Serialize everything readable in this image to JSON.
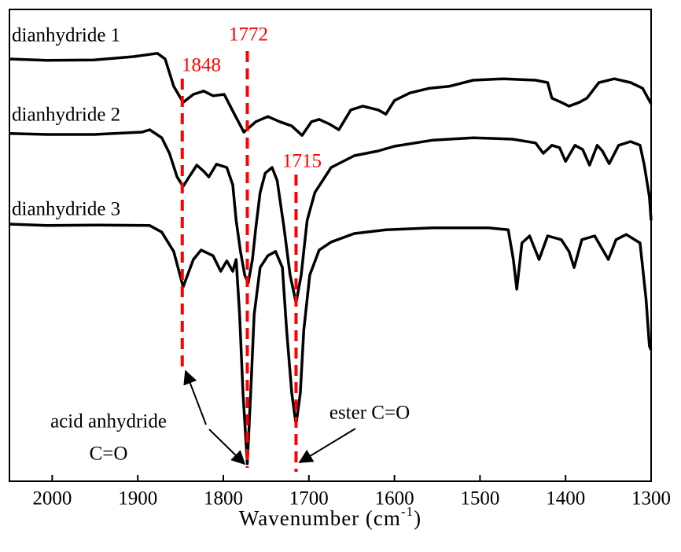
{
  "chart_data": {
    "type": "line",
    "xlabel": [
      "Wavenumber (cm",
      "-1",
      ")"
    ],
    "xlim": [
      2050,
      1300
    ],
    "xticks": [
      2000,
      1900,
      1800,
      1700,
      1600,
      1500,
      1400,
      1300
    ],
    "ylim": [
      0,
      100
    ],
    "series": [
      {
        "name": "dianhydride 1",
        "color": "#000000",
        "x": [
          2050,
          2006,
          1951,
          1905,
          1877,
          1868,
          1858,
          1847,
          1835,
          1823,
          1812,
          1799,
          1787,
          1776,
          1762,
          1748,
          1734,
          1720,
          1708,
          1697,
          1688,
          1676,
          1665,
          1651,
          1637,
          1619,
          1610,
          1600,
          1582,
          1559,
          1536,
          1508,
          1472,
          1435,
          1421,
          1416,
          1405,
          1396,
          1384,
          1375,
          1361,
          1343,
          1324,
          1310,
          1300
        ],
        "values": [
          89.5,
          89.2,
          89.3,
          90,
          90.7,
          89.5,
          83.7,
          80.3,
          82,
          82.7,
          81.7,
          82,
          77.8,
          74,
          76.2,
          77.3,
          76.2,
          75.3,
          73.3,
          76.2,
          76.7,
          75.7,
          74.5,
          78.7,
          79.5,
          78.7,
          77.8,
          80.7,
          82.3,
          83.3,
          83.7,
          85,
          85.3,
          85,
          84.5,
          81.2,
          80.3,
          79.5,
          80.3,
          81.2,
          84.5,
          85.3,
          84.5,
          83.3,
          80
        ]
      },
      {
        "name": "dianhydride 2",
        "color": "#000000",
        "x": [
          2050,
          2006,
          1951,
          1895,
          1886,
          1872,
          1863,
          1854,
          1847,
          1840,
          1831,
          1823,
          1817,
          1808,
          1796,
          1789,
          1785,
          1780,
          1775,
          1771,
          1766,
          1762,
          1757,
          1751,
          1743,
          1737,
          1729,
          1722,
          1715,
          1709,
          1702,
          1693,
          1674,
          1647,
          1619,
          1600,
          1555,
          1508,
          1462,
          1435,
          1426,
          1416,
          1407,
          1400,
          1389,
          1380,
          1372,
          1363,
          1357,
          1349,
          1338,
          1324,
          1313,
          1308,
          1302,
          1300
        ],
        "values": [
          73.7,
          73.5,
          73.5,
          74,
          74.5,
          72.8,
          69.5,
          64.5,
          62.5,
          64.5,
          67,
          65.7,
          64.5,
          67.2,
          66.5,
          62.8,
          55.3,
          48.7,
          43.7,
          42,
          47,
          53.7,
          61.2,
          65.3,
          66.5,
          63.7,
          53.7,
          43.7,
          37.8,
          43.7,
          55.3,
          61.2,
          66.5,
          69,
          70,
          71,
          72.3,
          72.8,
          72.5,
          71.7,
          69.5,
          71.2,
          70.7,
          67.8,
          71.2,
          70.3,
          67,
          71.2,
          70,
          67.3,
          71.2,
          72,
          71.2,
          67,
          60.3,
          55.3
        ]
      },
      {
        "name": "dianhydride 3",
        "color": "#000000",
        "x": [
          2050,
          2006,
          1951,
          1886,
          1872,
          1858,
          1847,
          1835,
          1826,
          1812,
          1803,
          1796,
          1789,
          1785,
          1781,
          1777,
          1772,
          1768,
          1764,
          1757,
          1748,
          1739,
          1731,
          1726,
          1720,
          1715,
          1710,
          1706,
          1699,
          1688,
          1674,
          1647,
          1610,
          1555,
          1490,
          1467,
          1461,
          1457,
          1451,
          1442,
          1431,
          1421,
          1405,
          1396,
          1390,
          1381,
          1366,
          1350,
          1341,
          1329,
          1313,
          1306,
          1302,
          1300
        ],
        "values": [
          54.5,
          54.2,
          54.3,
          54.2,
          52.8,
          48.7,
          41.2,
          47,
          49,
          47.8,
          44.5,
          46.7,
          44.5,
          47,
          35.3,
          18.7,
          3.7,
          18.7,
          35.3,
          45.3,
          47.8,
          48.7,
          45.3,
          32,
          18.7,
          12,
          18.7,
          32,
          43.7,
          49,
          50.7,
          52.5,
          53.3,
          53.7,
          53.7,
          53.3,
          47,
          40.7,
          50.5,
          52,
          47,
          52,
          51.2,
          48.7,
          45.3,
          51.2,
          52,
          47,
          51.2,
          52.3,
          50.5,
          38.7,
          28.7,
          27.8
        ]
      }
    ],
    "reference_lines": [
      1848,
      1772,
      1715
    ],
    "reference_color": "#ff0000",
    "annotations": [
      "acid anhydride",
      "C=O",
      "ester C=O"
    ]
  }
}
